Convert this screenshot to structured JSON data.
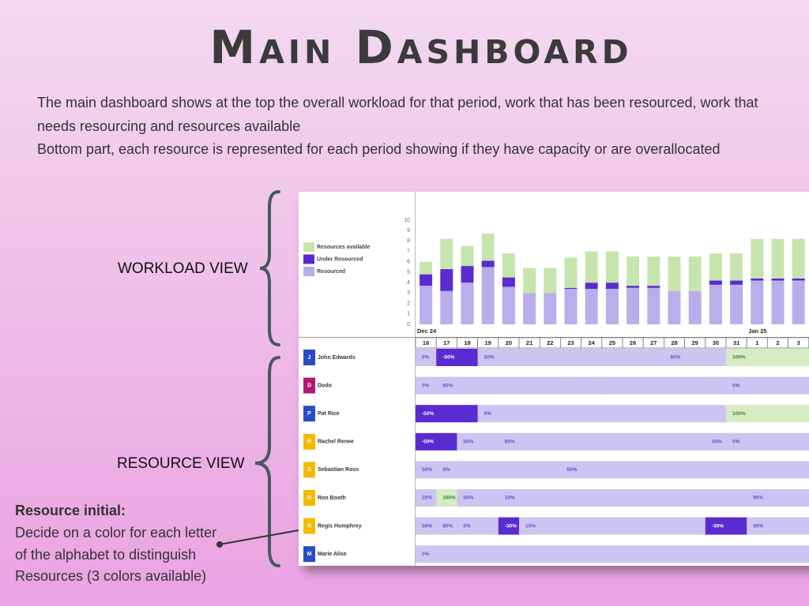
{
  "header": {
    "title": "Main Dashboard",
    "description": [
      "The main dashboard shows at the top the overall workload for that period, work that has been resourced, work that",
      "needs resourcing and resources available",
      "Bottom part, each resource is represented for each period showing if they have capacity or are overallocated"
    ]
  },
  "labels": {
    "workload_view": "WORKLOAD VIEW",
    "resource_view": "RESOURCE VIEW"
  },
  "note": {
    "title": "Resource initial:",
    "lines": [
      "Decide on a color for each letter",
      "of the alphabet to distinguish",
      "Resources (3 colors available)"
    ]
  },
  "chart_data": {
    "type": "stacked_bar",
    "categories": [
      "16",
      "17",
      "18",
      "19",
      "20",
      "21",
      "22",
      "23",
      "24",
      "25",
      "26",
      "27",
      "28",
      "29",
      "30",
      "31",
      "1",
      "2",
      "3"
    ],
    "month_labels": [
      "Dec 24",
      null,
      null,
      null,
      null,
      null,
      null,
      null,
      null,
      null,
      null,
      null,
      null,
      null,
      null,
      null,
      "Jan 25",
      null,
      null
    ],
    "ylim": [
      0,
      10
    ],
    "yticks": [
      0,
      1,
      2,
      3,
      4,
      5,
      6,
      7,
      8,
      9,
      10
    ],
    "series": [
      {
        "name": "Resourced",
        "color": "#b9aeea",
        "values": [
          3.7,
          3.2,
          4,
          5.5,
          3.6,
          3,
          3,
          3.4,
          3.4,
          3.4,
          3.5,
          3.5,
          3.2,
          3.2,
          3.8,
          3.8,
          4.2,
          4.2,
          4.2
        ]
      },
      {
        "name": "Under Resourced",
        "color": "#5a2bd0",
        "values": [
          1.1,
          2.1,
          1.6,
          0.6,
          0.9,
          0,
          0,
          0.1,
          0.6,
          0.6,
          0.2,
          0.2,
          0,
          0,
          0.4,
          0.4,
          0.2,
          0.2,
          0.2
        ]
      },
      {
        "name": "Resources available",
        "color": "#c6e5ae",
        "values": [
          1.2,
          2.9,
          1.9,
          2.6,
          2.3,
          2.4,
          2.4,
          2.9,
          3,
          3,
          2.8,
          2.8,
          3.3,
          3.3,
          2.6,
          2.6,
          3.8,
          3.8,
          3.8
        ]
      }
    ]
  },
  "resources": {
    "status_colors": {
      "capacity": "#cdc4f1",
      "over": "#5a2bd0",
      "available": "#d5ecc4"
    },
    "rows": [
      {
        "initial": "J",
        "name": "John Edwards",
        "color": "#2a4bc8",
        "cells": [
          "0%",
          "-50%",
          null,
          "50%",
          null,
          null,
          null,
          null,
          null,
          null,
          null,
          null,
          "80%",
          null,
          null,
          "100%",
          null,
          null,
          null
        ],
        "status": [
          "capacity",
          "over",
          "over",
          "capacity",
          "capacity",
          "capacity",
          "capacity",
          "capacity",
          "capacity",
          "capacity",
          "capacity",
          "capacity",
          "capacity",
          "capacity",
          "capacity",
          "available",
          "available",
          "available",
          "available"
        ]
      },
      {
        "initial": "D",
        "name": "Dodo",
        "color": "#b0186e",
        "cells": [
          "0%",
          "90%",
          null,
          null,
          null,
          null,
          null,
          null,
          null,
          null,
          null,
          null,
          null,
          null,
          null,
          "0%",
          null,
          null,
          null
        ],
        "status": [
          "capacity",
          "capacity",
          "capacity",
          "capacity",
          "capacity",
          "capacity",
          "capacity",
          "capacity",
          "capacity",
          "capacity",
          "capacity",
          "capacity",
          "capacity",
          "capacity",
          "capacity",
          "capacity",
          "capacity",
          "capacity",
          "capacity"
        ]
      },
      {
        "initial": "P",
        "name": "Pat Rice",
        "color": "#2a4bc8",
        "cells": [
          "-50%",
          null,
          null,
          "0%",
          null,
          null,
          null,
          null,
          null,
          null,
          null,
          null,
          null,
          null,
          null,
          "100%",
          null,
          null,
          null
        ],
        "status": [
          "over",
          "over",
          "over",
          "capacity",
          "capacity",
          "capacity",
          "capacity",
          "capacity",
          "capacity",
          "capacity",
          "capacity",
          "capacity",
          "capacity",
          "capacity",
          "capacity",
          "available",
          "available",
          "available",
          "available"
        ]
      },
      {
        "initial": "R",
        "name": "Rachel Renee",
        "color": "#f5b800",
        "cells": [
          "-50%",
          null,
          "50%",
          null,
          "80%",
          null,
          null,
          null,
          null,
          null,
          null,
          null,
          null,
          null,
          "30%",
          "0%",
          null,
          null,
          null
        ],
        "status": [
          "over",
          "over",
          "capacity",
          "capacity",
          "capacity",
          "capacity",
          "capacity",
          "capacity",
          "capacity",
          "capacity",
          "capacity",
          "capacity",
          "capacity",
          "capacity",
          "capacity",
          "capacity",
          "capacity",
          "capacity",
          "capacity"
        ]
      },
      {
        "initial": "S",
        "name": "Sebastian Ross",
        "color": "#f5b800",
        "cells": [
          "50%",
          "0%",
          null,
          null,
          null,
          null,
          null,
          "50%",
          null,
          null,
          null,
          null,
          null,
          null,
          null,
          null,
          null,
          null,
          null
        ],
        "status": [
          "capacity",
          "capacity",
          "capacity",
          "capacity",
          "capacity",
          "capacity",
          "capacity",
          "capacity",
          "capacity",
          "capacity",
          "capacity",
          "capacity",
          "capacity",
          "capacity",
          "capacity",
          "capacity",
          "capacity",
          "capacity",
          "capacity"
        ]
      },
      {
        "initial": "R",
        "name": "Ron Booth",
        "color": "#f5b800",
        "cells": [
          "20%",
          "100%",
          "50%",
          null,
          "10%",
          null,
          null,
          null,
          null,
          null,
          null,
          null,
          null,
          null,
          null,
          null,
          "90%",
          null,
          null
        ],
        "status": [
          "capacity",
          "available",
          "capacity",
          "capacity",
          "capacity",
          "capacity",
          "capacity",
          "capacity",
          "capacity",
          "capacity",
          "capacity",
          "capacity",
          "capacity",
          "capacity",
          "capacity",
          "capacity",
          "capacity",
          "capacity",
          "capacity"
        ]
      },
      {
        "initial": "R",
        "name": "Regis Humphrey",
        "color": "#f5b800",
        "cells": [
          "50%",
          "80%",
          "0%",
          null,
          "-30%",
          "10%",
          null,
          null,
          null,
          null,
          null,
          null,
          null,
          null,
          "-30%",
          null,
          "50%",
          null,
          null
        ],
        "status": [
          "capacity",
          "capacity",
          "capacity",
          "capacity",
          "over",
          "capacity",
          "capacity",
          "capacity",
          "capacity",
          "capacity",
          "capacity",
          "capacity",
          "capacity",
          "capacity",
          "over",
          "over",
          "capacity",
          "capacity",
          "capacity"
        ]
      },
      {
        "initial": "M",
        "name": "Marie Alise",
        "color": "#2a4bc8",
        "cells": [
          "0%",
          null,
          null,
          null,
          null,
          null,
          null,
          null,
          null,
          null,
          null,
          null,
          null,
          null,
          null,
          null,
          null,
          null,
          null
        ],
        "status": [
          "capacity",
          "capacity",
          "capacity",
          "capacity",
          "capacity",
          "capacity",
          "capacity",
          "capacity",
          "capacity",
          "capacity",
          "capacity",
          "capacity",
          "capacity",
          "capacity",
          "capacity",
          "capacity",
          "capacity",
          "capacity",
          "capacity"
        ]
      }
    ]
  }
}
